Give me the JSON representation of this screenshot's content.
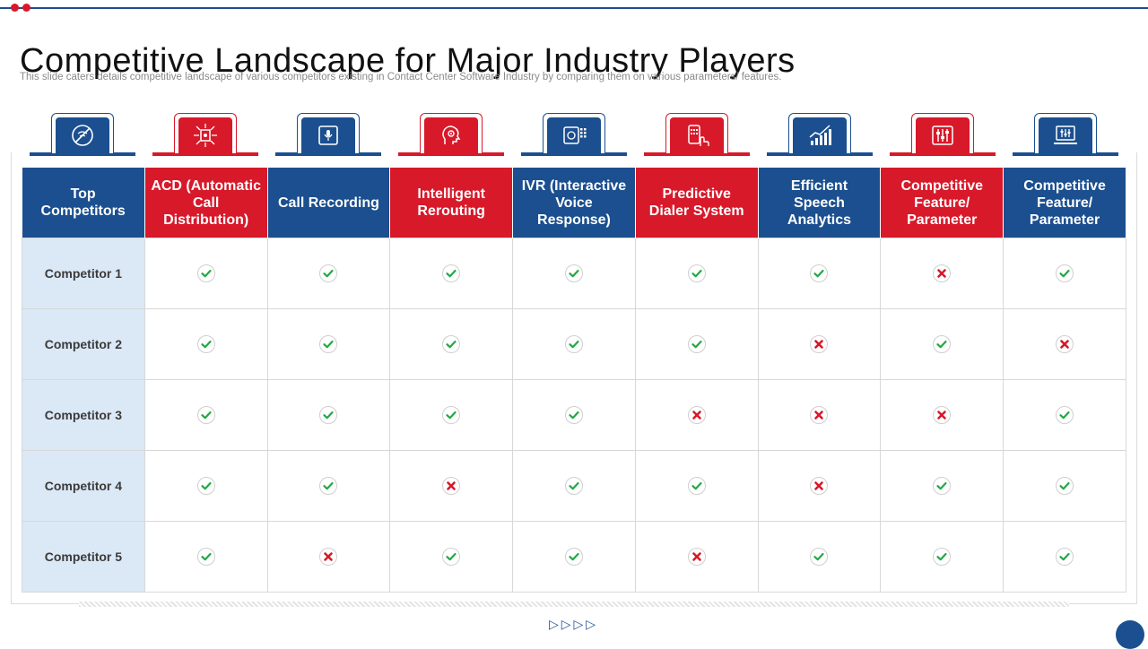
{
  "slide": {
    "title": "Competitive Landscape for Major Industry Players",
    "subtitle": "This slide caters details competitive landscape of various competitors existing in Contact Center Software Industry by comparing them on various parameters/ features.",
    "nav_arrows": "▷▷▷▷"
  },
  "colors": {
    "blue": "#1b4f8f",
    "red": "#d7192a",
    "row_label_bg": "#dbe8f6",
    "check_green": "#22a845",
    "cross_red": "#d7192a"
  },
  "icons": [
    {
      "name": "no-signal-icon",
      "color": "blue"
    },
    {
      "name": "call-distribution-icon",
      "color": "red"
    },
    {
      "name": "recording-device-icon",
      "color": "blue"
    },
    {
      "name": "head-gear-icon",
      "color": "red"
    },
    {
      "name": "voice-response-icon",
      "color": "blue"
    },
    {
      "name": "phone-dialer-icon",
      "color": "red"
    },
    {
      "name": "analytics-chart-icon",
      "color": "blue"
    },
    {
      "name": "parameter-controls-icon",
      "color": "red"
    },
    {
      "name": "laptop-settings-icon",
      "color": "blue"
    }
  ],
  "table": {
    "headers": [
      {
        "label": "Top Competitors",
        "color": "blue"
      },
      {
        "label": "ACD (Automatic Call Distribution)",
        "color": "red"
      },
      {
        "label": "Call Recording",
        "color": "blue"
      },
      {
        "label": "Intelligent Rerouting",
        "color": "red"
      },
      {
        "label": "IVR (Interactive Voice Response)",
        "color": "blue"
      },
      {
        "label": "Predictive Dialer System",
        "color": "red"
      },
      {
        "label": "Efficient Speech Analytics",
        "color": "blue"
      },
      {
        "label": "Competitive Feature/ Parameter",
        "color": "red"
      },
      {
        "label": "Competitive Feature/ Parameter",
        "color": "blue"
      }
    ],
    "rows": [
      {
        "label": "Competitor 1",
        "values": [
          "check",
          "check",
          "check",
          "check",
          "check",
          "check",
          "cross",
          "check"
        ]
      },
      {
        "label": "Competitor 2",
        "values": [
          "check",
          "check",
          "check",
          "check",
          "check",
          "cross",
          "check",
          "cross"
        ]
      },
      {
        "label": "Competitor 3",
        "values": [
          "check",
          "check",
          "check",
          "check",
          "cross",
          "cross",
          "cross",
          "check"
        ]
      },
      {
        "label": "Competitor 4",
        "values": [
          "check",
          "check",
          "cross",
          "check",
          "check",
          "cross",
          "check",
          "check"
        ]
      },
      {
        "label": "Competitor 5",
        "values": [
          "check",
          "cross",
          "check",
          "check",
          "cross",
          "check",
          "check",
          "check"
        ]
      }
    ]
  }
}
